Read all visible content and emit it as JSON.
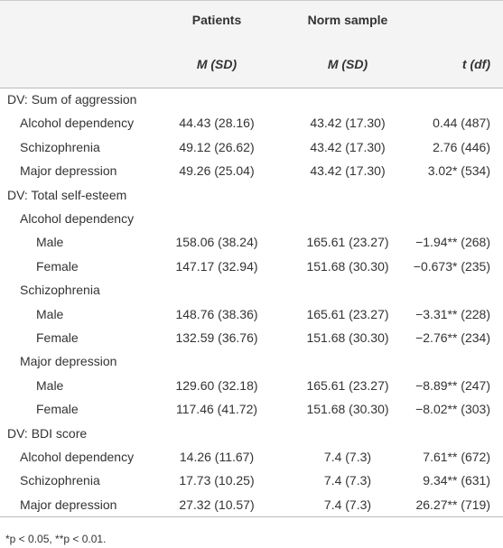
{
  "header": {
    "columns": [
      "Patients",
      "Norm sample"
    ],
    "subcolumns": [
      "M (SD)",
      "M (SD)",
      "t (df)"
    ]
  },
  "groups": [
    {
      "label": "DV: Sum of aggression",
      "rows": [
        {
          "label": "Alcohol dependency",
          "cells": [
            "44.43 (28.16)",
            "43.42 (17.30)",
            "0.44 (487)"
          ]
        },
        {
          "label": "Schizophrenia",
          "cells": [
            "49.12 (26.62)",
            "43.42 (17.30)",
            "2.76 (446)"
          ]
        },
        {
          "label": "Major depression",
          "cells": [
            "49.26 (25.04)",
            "43.42 (17.30)",
            "3.02* (534)"
          ]
        }
      ]
    },
    {
      "label": "DV: Total self-esteem",
      "rows": [
        {
          "label": "Alcohol dependency",
          "rows": [
            {
              "label": "Male",
              "cells": [
                "158.06 (38.24)",
                "165.61 (23.27)",
                "−1.94** (268)"
              ]
            },
            {
              "label": "Female",
              "cells": [
                "147.17 (32.94)",
                "151.68 (30.30)",
                "−0.673* (235)"
              ]
            }
          ]
        },
        {
          "label": "Schizophrenia",
          "rows": [
            {
              "label": "Male",
              "cells": [
                "148.76 (38.36)",
                "165.61 (23.27)",
                "−3.31** (228)"
              ]
            },
            {
              "label": "Female",
              "cells": [
                "132.59 (36.76)",
                "151.68 (30.30)",
                "−2.76** (234)"
              ]
            }
          ]
        },
        {
          "label": "Major depression",
          "rows": [
            {
              "label": "Male",
              "cells": [
                "129.60 (32.18)",
                "165.61 (23.27)",
                "−8.89** (247)"
              ]
            },
            {
              "label": "Female",
              "cells": [
                "117.46 (41.72)",
                "151.68 (30.30)",
                "−8.02** (303)"
              ]
            }
          ]
        }
      ]
    },
    {
      "label": "DV: BDI score",
      "rows": [
        {
          "label": "Alcohol dependency",
          "cells": [
            "14.26 (11.67)",
            "7.4 (7.3)",
            "7.61** (672)"
          ]
        },
        {
          "label": "Schizophrenia",
          "cells": [
            "17.73 (10.25)",
            "7.4 (7.3)",
            "9.34** (631)"
          ]
        },
        {
          "label": "Major depression",
          "cells": [
            "27.32 (10.57)",
            "7.4 (7.3)",
            "26.27** (719)"
          ]
        }
      ]
    }
  ],
  "footnote": "*p < 0.05, **p < 0.01."
}
